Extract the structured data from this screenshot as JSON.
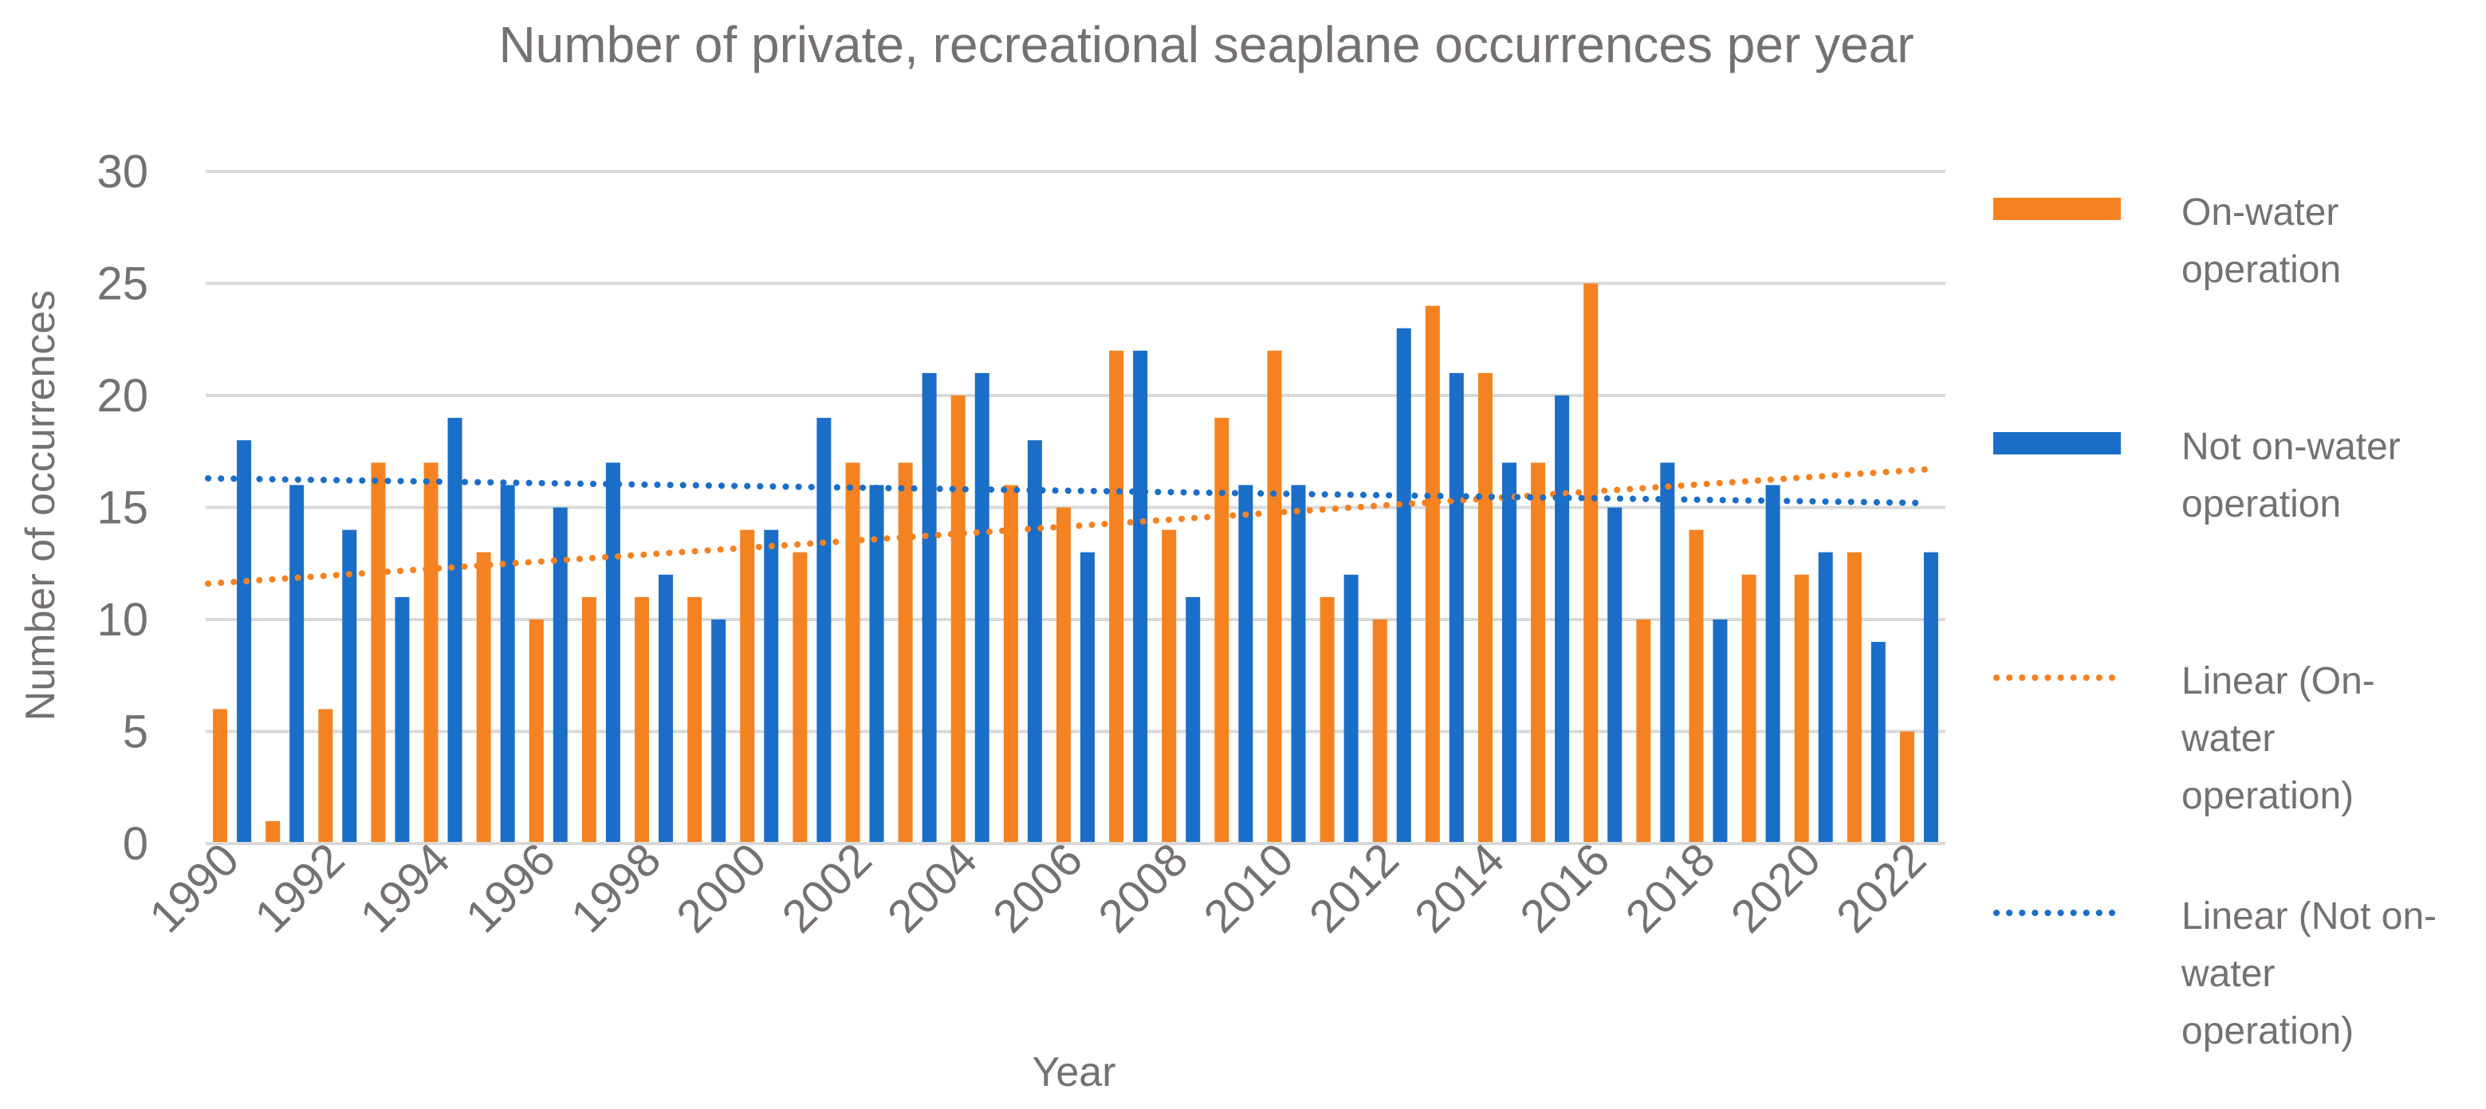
{
  "chart_data": {
    "type": "bar",
    "title": "Number of private, recreational seaplane occurrences per year",
    "xlabel": "Year",
    "ylabel": "Number of occurrences",
    "ylim": [
      0,
      30
    ],
    "yticks": [
      0,
      5,
      10,
      15,
      20,
      25,
      30
    ],
    "grid": true,
    "legend_position": "right",
    "categories": [
      "1990",
      "1991",
      "1992",
      "1993",
      "1994",
      "1995",
      "1996",
      "1997",
      "1998",
      "1999",
      "2000",
      "2001",
      "2002",
      "2003",
      "2004",
      "2005",
      "2006",
      "2007",
      "2008",
      "2009",
      "2010",
      "2011",
      "2012",
      "2013",
      "2014",
      "2015",
      "2016",
      "2017",
      "2018",
      "2019",
      "2020",
      "2021",
      "2022"
    ],
    "xtick_labels": [
      "1990",
      "1992",
      "1994",
      "1996",
      "1998",
      "2000",
      "2002",
      "2004",
      "2006",
      "2008",
      "2010",
      "2012",
      "2014",
      "2016",
      "2018",
      "2020",
      "2022"
    ],
    "series": [
      {
        "name": "On-water operation",
        "color": "#F58220",
        "values": [
          6,
          1,
          6,
          17,
          17,
          13,
          10,
          11,
          11,
          11,
          14,
          13,
          17,
          17,
          20,
          16,
          15,
          22,
          14,
          19,
          22,
          11,
          10,
          24,
          21,
          17,
          25,
          10,
          14,
          12,
          12,
          13,
          5
        ]
      },
      {
        "name": "Not on-water operation",
        "color": "#1A6EC7",
        "values": [
          18,
          16,
          14,
          11,
          19,
          16,
          15,
          17,
          12,
          10,
          14,
          19,
          16,
          21,
          21,
          18,
          13,
          22,
          11,
          16,
          16,
          12,
          23,
          21,
          17,
          20,
          15,
          17,
          10,
          16,
          13,
          9,
          13
        ]
      }
    ],
    "trendlines": [
      {
        "name": "Linear (On-water operation)",
        "color": "#F58220",
        "start": 11.6,
        "end": 16.7
      },
      {
        "name": "Linear (Not on-water operation)",
        "color": "#1A6EC7",
        "start": 16.3,
        "end": 15.2
      }
    ],
    "legend": [
      {
        "kind": "bar",
        "color": "#F58220",
        "lines": [
          "On-water",
          "operation"
        ]
      },
      {
        "kind": "bar",
        "color": "#1A6EC7",
        "lines": [
          "Not on-water",
          "operation"
        ]
      },
      {
        "kind": "line",
        "color": "#F58220",
        "lines": [
          "Linear (On-",
          "water",
          "operation)"
        ]
      },
      {
        "kind": "line",
        "color": "#1A6EC7",
        "lines": [
          "Linear (Not on-",
          "water",
          "operation)"
        ]
      }
    ]
  }
}
